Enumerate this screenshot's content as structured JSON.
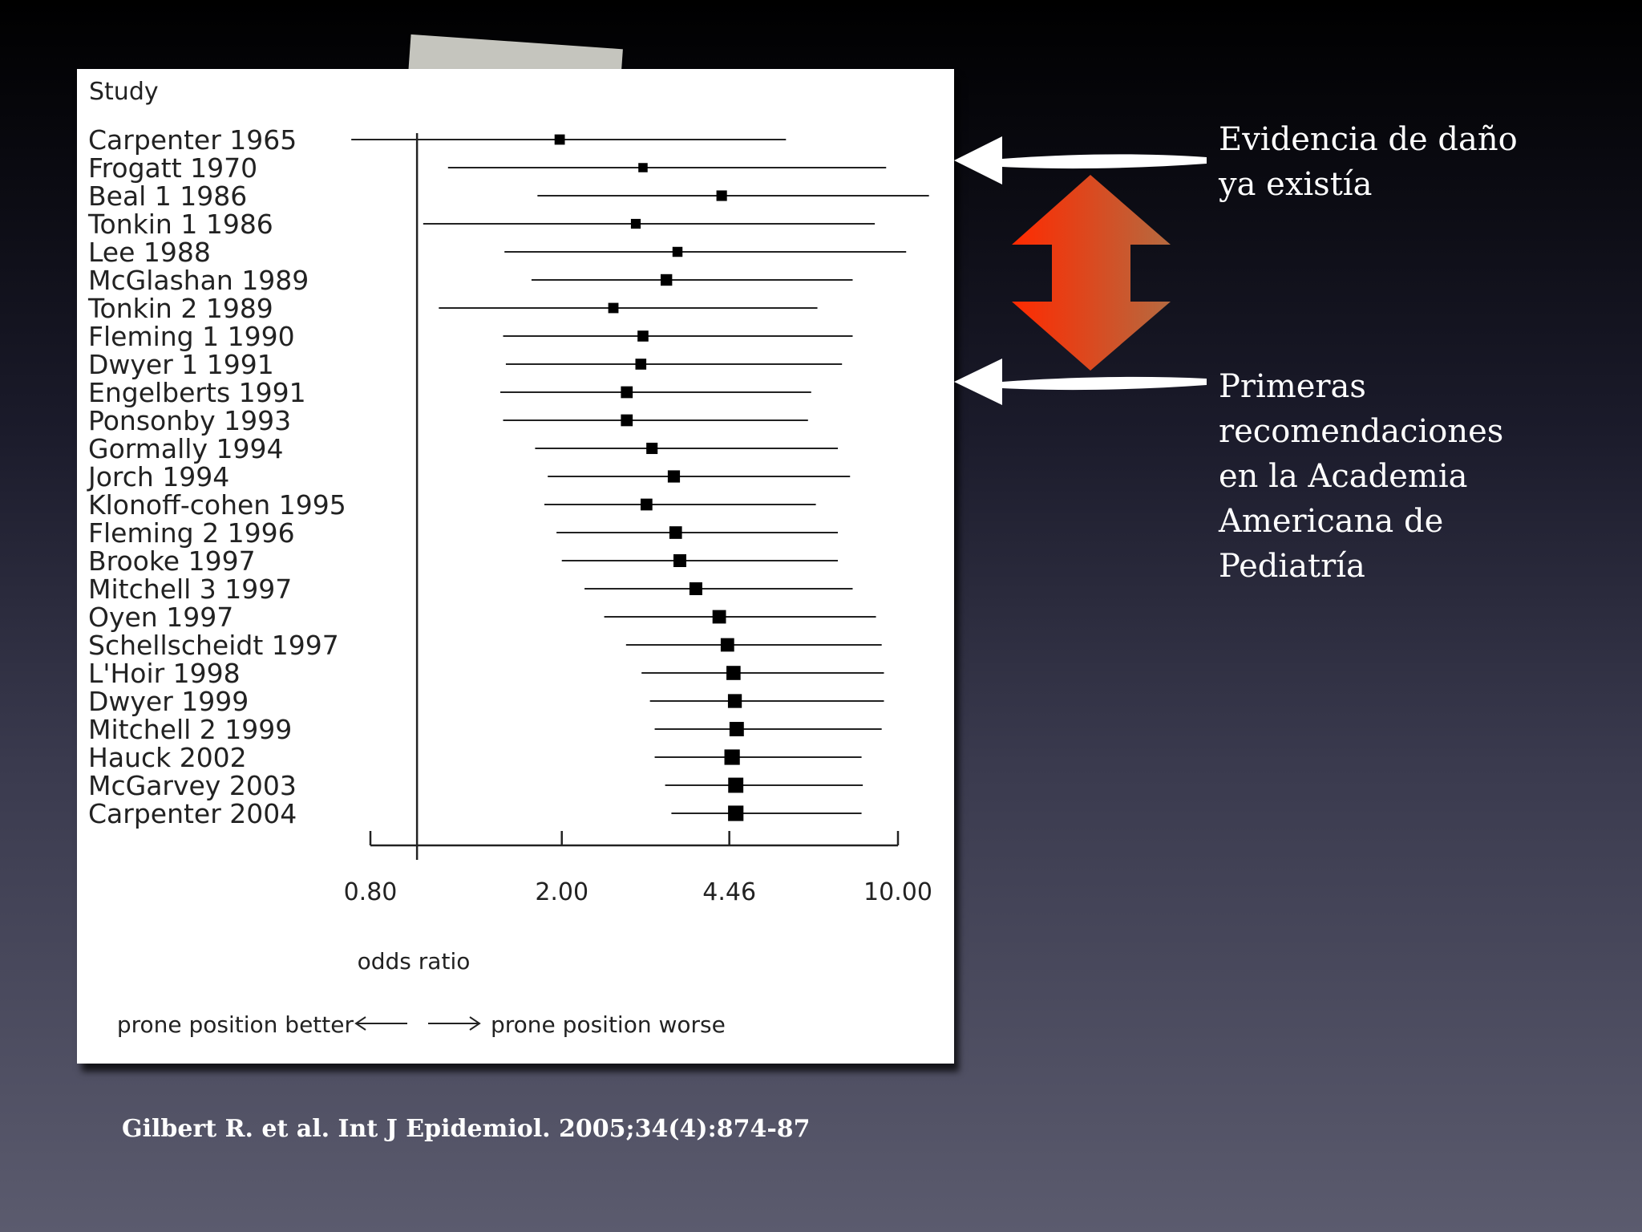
{
  "slide": {
    "note_top": "Evidencia de daño\nya existía",
    "note_bottom": "Primeras\nrecomendaciones\nen la Academia\nAmericana de\nPediatría",
    "citation": "Gilbert R. et al. Int J Epidemiol. 2005;34(4):874-87",
    "colors": {
      "arrow": "#ffffff",
      "double_arrow_start": "#ff2a00",
      "double_arrow_end": "#b56a40"
    }
  },
  "chart_data": {
    "type": "forest",
    "title": "",
    "column_header": "Study",
    "xlabel": "odds ratio",
    "x_scale": "log",
    "xlim": [
      0.8,
      10.0
    ],
    "xticks": [
      0.8,
      2.0,
      4.46,
      10.0
    ],
    "xtick_labels": [
      "0.80",
      "2.00",
      "4.46",
      "10.00"
    ],
    "reference_line": 1.0,
    "direction_left": "prone position better",
    "direction_right": "prone position worse",
    "studies": [
      {
        "label": "Carpenter 1965",
        "or": 1.98,
        "lower": 0.73,
        "upper": 5.85,
        "weight": 0.3
      },
      {
        "label": "Frogatt 1970",
        "or": 2.95,
        "lower": 1.16,
        "upper": 9.45,
        "weight": 0.22
      },
      {
        "label": "Beal 1 1986",
        "or": 4.3,
        "lower": 1.78,
        "upper": 11.6,
        "weight": 0.32
      },
      {
        "label": "Tonkin 1 1986",
        "or": 2.85,
        "lower": 1.03,
        "upper": 8.95,
        "weight": 0.26
      },
      {
        "label": "Lee 1988",
        "or": 3.48,
        "lower": 1.52,
        "upper": 10.4,
        "weight": 0.28
      },
      {
        "label": "McGlashan 1989",
        "or": 3.3,
        "lower": 1.73,
        "upper": 8.05,
        "weight": 0.4
      },
      {
        "label": "Tonkin 2 1989",
        "or": 2.56,
        "lower": 1.11,
        "upper": 6.8,
        "weight": 0.3
      },
      {
        "label": "Fleming 1 1990",
        "or": 2.95,
        "lower": 1.51,
        "upper": 8.05,
        "weight": 0.35
      },
      {
        "label": "Dwyer 1 1991",
        "or": 2.92,
        "lower": 1.53,
        "upper": 7.65,
        "weight": 0.35
      },
      {
        "label": "Engelberts 1991",
        "or": 2.73,
        "lower": 1.49,
        "upper": 6.6,
        "weight": 0.42
      },
      {
        "label": "Ponsonby 1993",
        "or": 2.73,
        "lower": 1.51,
        "upper": 6.5,
        "weight": 0.42
      },
      {
        "label": "Gormally 1994",
        "or": 3.08,
        "lower": 1.76,
        "upper": 7.5,
        "weight": 0.38
      },
      {
        "label": "Jorch 1994",
        "or": 3.42,
        "lower": 1.87,
        "upper": 7.95,
        "weight": 0.45
      },
      {
        "label": "Klonoff-cohen 1995",
        "or": 3.0,
        "lower": 1.84,
        "upper": 6.75,
        "weight": 0.42
      },
      {
        "label": "Fleming 2 1996",
        "or": 3.45,
        "lower": 1.95,
        "upper": 7.5,
        "weight": 0.48
      },
      {
        "label": "Brooke 1997",
        "or": 3.52,
        "lower": 2.0,
        "upper": 7.5,
        "weight": 0.5
      },
      {
        "label": "Mitchell 3 1997",
        "or": 3.8,
        "lower": 2.23,
        "upper": 8.05,
        "weight": 0.5
      },
      {
        "label": "Oyen 1997",
        "or": 4.25,
        "lower": 2.45,
        "upper": 9.0,
        "weight": 0.55
      },
      {
        "label": "Schellscheidt 1997",
        "or": 4.42,
        "lower": 2.72,
        "upper": 9.25,
        "weight": 0.55
      },
      {
        "label": "L'Hoir 1998",
        "or": 4.55,
        "lower": 2.93,
        "upper": 9.35,
        "weight": 0.6
      },
      {
        "label": "Dwyer 1999",
        "or": 4.58,
        "lower": 3.05,
        "upper": 9.35,
        "weight": 0.58
      },
      {
        "label": "Mitchell 2 1999",
        "or": 4.62,
        "lower": 3.12,
        "upper": 9.25,
        "weight": 0.62
      },
      {
        "label": "Hauck 2002",
        "or": 4.52,
        "lower": 3.12,
        "upper": 8.4,
        "weight": 0.7
      },
      {
        "label": "McGarvey 2003",
        "or": 4.6,
        "lower": 3.28,
        "upper": 8.45,
        "weight": 0.68
      },
      {
        "label": "Carpenter 2004",
        "or": 4.6,
        "lower": 3.38,
        "upper": 8.4,
        "weight": 0.7
      }
    ]
  }
}
